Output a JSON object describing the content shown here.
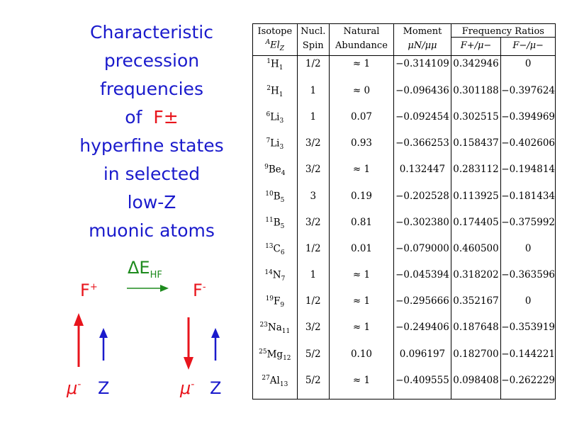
{
  "title": {
    "line1": "Characteristic",
    "line2": "precession",
    "line3": "frequencies",
    "line4_prefix": "of",
    "line4_symbol": "F±",
    "line5": "hyperfine states",
    "line6": "in selected",
    "line7": "low-Z",
    "line8": "muonic atoms"
  },
  "diagram": {
    "delta_label": "ΔE",
    "delta_sub": "HF",
    "f_plus": "F",
    "f_plus_sup": "+",
    "f_minus": "F",
    "f_minus_sup": "-",
    "mu_left": "μ",
    "mu_left_sup": "-",
    "z_left": "Z",
    "mu_right": "μ",
    "mu_right_sup": "-",
    "z_right": "Z",
    "colors": {
      "red": "#e8141c",
      "blue": "#1a1acc",
      "green": "#1e8b1e"
    }
  },
  "table": {
    "headers": {
      "isotope": "Isotope",
      "isotope_sub_a": "A",
      "isotope_sub_el": "El",
      "isotope_sub_z": "Z",
      "spin_top": "Nucl.",
      "spin_bottom": "Spin",
      "abund_top": "Natural",
      "abund_bottom": "Abundance",
      "moment_top": "Moment",
      "moment_bottom": "μN/μμ",
      "freq_top": "Frequency Ratios",
      "freq_plus": "F+/μ−",
      "freq_minus": "F−/μ−"
    },
    "rows": [
      {
        "a": "1",
        "el": "H",
        "z": "1",
        "spin": "1/2",
        "abund": "≈ 1",
        "moment": "−0.314109",
        "fplus": "0.342946",
        "fminus": "0"
      },
      {
        "a": "2",
        "el": "H",
        "z": "1",
        "spin": "1",
        "abund": "≈ 0",
        "moment": "−0.096436",
        "fplus": "0.301188",
        "fminus": "−0.397624"
      },
      {
        "a": "6",
        "el": "Li",
        "z": "3",
        "spin": "1",
        "abund": "0.07",
        "moment": "−0.092454",
        "fplus": "0.302515",
        "fminus": "−0.394969"
      },
      {
        "a": "7",
        "el": "Li",
        "z": "3",
        "spin": "3/2",
        "abund": "0.93",
        "moment": "−0.366253",
        "fplus": "0.158437",
        "fminus": "−0.402606"
      },
      {
        "a": "9",
        "el": "Be",
        "z": "4",
        "spin": "3/2",
        "abund": "≈ 1",
        "moment": "0.132447",
        "fplus": "0.283112",
        "fminus": "−0.194814"
      },
      {
        "a": "10",
        "el": "B",
        "z": "5",
        "spin": "3",
        "abund": "0.19",
        "moment": "−0.202528",
        "fplus": "0.113925",
        "fminus": "−0.181434"
      },
      {
        "a": "11",
        "el": "B",
        "z": "5",
        "spin": "3/2",
        "abund": "0.81",
        "moment": "−0.302380",
        "fplus": "0.174405",
        "fminus": "−0.375992"
      },
      {
        "a": "13",
        "el": "C",
        "z": "6",
        "spin": "1/2",
        "abund": "0.01",
        "moment": "−0.079000",
        "fplus": "0.460500",
        "fminus": "0"
      },
      {
        "a": "14",
        "el": "N",
        "z": "7",
        "spin": "1",
        "abund": "≈ 1",
        "moment": "−0.045394",
        "fplus": "0.318202",
        "fminus": "−0.363596"
      },
      {
        "a": "19",
        "el": "F",
        "z": "9",
        "spin": "1/2",
        "abund": "≈ 1",
        "moment": "−0.295666",
        "fplus": "0.352167",
        "fminus": "0"
      },
      {
        "a": "23",
        "el": "Na",
        "z": "11",
        "spin": "3/2",
        "abund": "≈ 1",
        "moment": "−0.249406",
        "fplus": "0.187648",
        "fminus": "−0.353919"
      },
      {
        "a": "25",
        "el": "Mg",
        "z": "12",
        "spin": "5/2",
        "abund": "0.10",
        "moment": "0.096197",
        "fplus": "0.182700",
        "fminus": "−0.144221"
      },
      {
        "a": "27",
        "el": "Al",
        "z": "13",
        "spin": "5/2",
        "abund": "≈ 1",
        "moment": "−0.409555",
        "fplus": "0.098408",
        "fminus": "−0.262229"
      }
    ]
  }
}
